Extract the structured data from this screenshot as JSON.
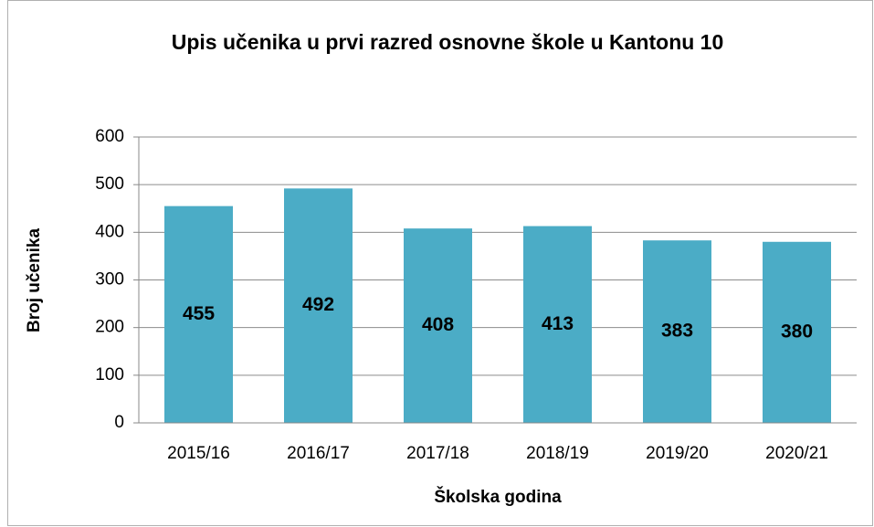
{
  "chart_data": {
    "type": "bar",
    "title": "Upis učenika u prvi razred osnovne škole u Kantonu 10",
    "x_label": "Školska godina",
    "y_label": "Broj učenika",
    "categories": [
      "2015/16",
      "2016/17",
      "2017/18",
      "2018/19",
      "2019/20",
      "2020/21"
    ],
    "values": [
      455,
      492,
      408,
      413,
      383,
      380
    ],
    "color": "#4bacc6",
    "ylim": [
      0,
      600
    ],
    "yticks": [
      0,
      100,
      200,
      300,
      400,
      500,
      600
    ],
    "grid": true
  }
}
